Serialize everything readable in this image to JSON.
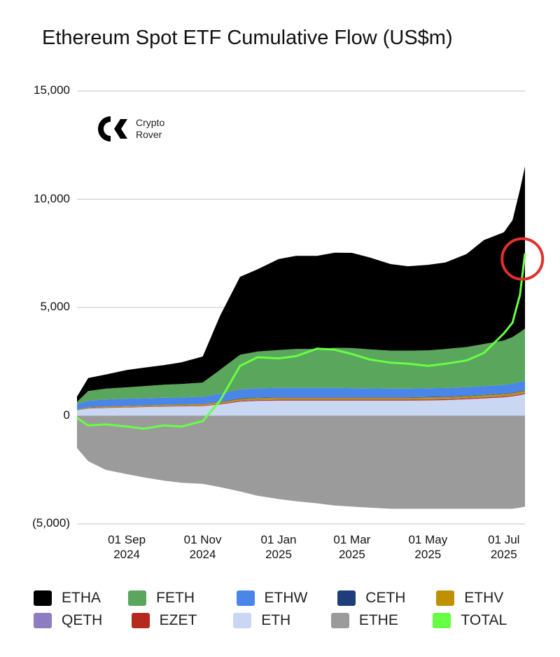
{
  "chart_data": {
    "type": "area",
    "title": "Ethereum Spot ETF Cumulative Flow (US$m)",
    "xlabel": "",
    "ylabel": "",
    "ylim": [
      -5000,
      15000
    ],
    "y_ticks": [
      "15,000",
      "10,000",
      "5,000",
      "0",
      "(5,000)"
    ],
    "x_ticks": [
      {
        "date": "2024-09-01",
        "line1": "01 Sep",
        "line2": "2024"
      },
      {
        "date": "2024-11-01",
        "line1": "01 Nov",
        "line2": "2024"
      },
      {
        "date": "2025-01-01",
        "line1": "01 Jan",
        "line2": "2025"
      },
      {
        "date": "2025-03-01",
        "line1": "01 Mar",
        "line2": "2025"
      },
      {
        "date": "2025-05-01",
        "line1": "01 May",
        "line2": "2025"
      },
      {
        "date": "2025-07-01",
        "line1": "01 Jul",
        "line2": "2025"
      }
    ],
    "x_range": [
      "2024-07-23",
      "2025-07-18"
    ],
    "grid": true,
    "legend_position": "bottom",
    "x": [
      "2024-07-23",
      "2024-08-01",
      "2024-08-15",
      "2024-09-01",
      "2024-09-15",
      "2024-10-01",
      "2024-10-15",
      "2024-11-01",
      "2024-11-15",
      "2024-12-01",
      "2024-12-15",
      "2025-01-01",
      "2025-01-15",
      "2025-02-01",
      "2025-02-15",
      "2025-03-01",
      "2025-03-15",
      "2025-04-01",
      "2025-04-15",
      "2025-05-01",
      "2025-05-15",
      "2025-06-01",
      "2025-06-15",
      "2025-07-01",
      "2025-07-08",
      "2025-07-14",
      "2025-07-18"
    ],
    "series": [
      {
        "name": "ETHE",
        "color": "#9b9b9b",
        "values": [
          -1500,
          -2100,
          -2500,
          -2700,
          -2850,
          -3000,
          -3100,
          -3150,
          -3300,
          -3500,
          -3700,
          -3850,
          -3950,
          -4050,
          -4150,
          -4200,
          -4250,
          -4300,
          -4300,
          -4300,
          -4300,
          -4300,
          -4300,
          -4300,
          -4300,
          -4250,
          -4200
        ]
      },
      {
        "name": "ETH",
        "color": "#c9d7f2",
        "values": [
          250,
          330,
          360,
          380,
          400,
          420,
          430,
          450,
          520,
          650,
          690,
          700,
          700,
          700,
          700,
          700,
          700,
          700,
          700,
          710,
          720,
          760,
          800,
          850,
          900,
          950,
          1000
        ]
      },
      {
        "name": "EZET",
        "color": "#b52a1f",
        "values": [
          10,
          15,
          20,
          20,
          20,
          20,
          20,
          25,
          30,
          35,
          35,
          40,
          40,
          40,
          40,
          40,
          40,
          40,
          40,
          40,
          40,
          40,
          40,
          40,
          40,
          40,
          40
        ]
      },
      {
        "name": "QETH",
        "color": "#8e7cc3",
        "values": [
          0,
          5,
          5,
          10,
          10,
          10,
          10,
          10,
          15,
          20,
          20,
          20,
          20,
          20,
          20,
          20,
          20,
          20,
          20,
          20,
          20,
          20,
          20,
          20,
          20,
          20,
          20
        ]
      },
      {
        "name": "ETHV",
        "color": "#bf9000",
        "values": [
          20,
          30,
          35,
          40,
          40,
          45,
          45,
          50,
          60,
          70,
          70,
          75,
          75,
          75,
          75,
          75,
          75,
          75,
          75,
          80,
          80,
          80,
          85,
          85,
          85,
          90,
          90
        ]
      },
      {
        "name": "CETH",
        "color": "#1f3d7a",
        "values": [
          5,
          10,
          10,
          10,
          10,
          10,
          10,
          10,
          15,
          20,
          20,
          20,
          20,
          20,
          20,
          20,
          20,
          20,
          20,
          20,
          20,
          20,
          20,
          20,
          20,
          20,
          20
        ]
      },
      {
        "name": "ETHW",
        "color": "#4a86e8",
        "values": [
          250,
          300,
          320,
          330,
          330,
          330,
          330,
          340,
          380,
          420,
          430,
          430,
          430,
          430,
          430,
          420,
          410,
          400,
          400,
          400,
          400,
          400,
          400,
          410,
          420,
          440,
          450
        ]
      },
      {
        "name": "FETH",
        "color": "#5aa65c",
        "values": [
          100,
          450,
          500,
          520,
          560,
          600,
          620,
          650,
          1100,
          1600,
          1700,
          1750,
          1800,
          1800,
          1850,
          1850,
          1800,
          1750,
          1750,
          1750,
          1800,
          1850,
          1950,
          2050,
          2150,
          2300,
          2400
        ]
      },
      {
        "name": "ETHA",
        "color": "#000000",
        "values": [
          250,
          600,
          650,
          800,
          850,
          900,
          1000,
          1200,
          2500,
          3600,
          3800,
          4200,
          4300,
          4300,
          4400,
          4400,
          4250,
          4000,
          3900,
          3950,
          4000,
          4300,
          4800,
          5000,
          5400,
          6600,
          7500
        ]
      }
    ],
    "total": {
      "name": "TOTAL",
      "color": "#66ff44",
      "values": [
        -100,
        -450,
        -400,
        -500,
        -600,
        -450,
        -500,
        -250,
        700,
        2300,
        2700,
        2650,
        2750,
        3100,
        3050,
        2850,
        2600,
        2450,
        2400,
        2300,
        2400,
        2550,
        2900,
        3800,
        4300,
        5600,
        7500
      ]
    },
    "annotation": {
      "type": "circle",
      "date": "2025-07-17",
      "value": 7500,
      "color": "#e0302b"
    },
    "legend": [
      {
        "name": "ETHA",
        "color": "#000000"
      },
      {
        "name": "FETH",
        "color": "#5aa65c"
      },
      {
        "name": "ETHW",
        "color": "#4a86e8"
      },
      {
        "name": "CETH",
        "color": "#1f3d7a"
      },
      {
        "name": "ETHV",
        "color": "#bf9000"
      },
      {
        "name": "QETH",
        "color": "#8e7cc3"
      },
      {
        "name": "EZET",
        "color": "#b52a1f"
      },
      {
        "name": "ETH",
        "color": "#c9d7f2"
      },
      {
        "name": "ETHE",
        "color": "#9b9b9b"
      },
      {
        "name": "TOTAL",
        "color": "#66ff44"
      }
    ]
  },
  "watermark": {
    "line1": "Crypto",
    "line2": "Rover",
    "icon": "cr-logo-icon"
  }
}
